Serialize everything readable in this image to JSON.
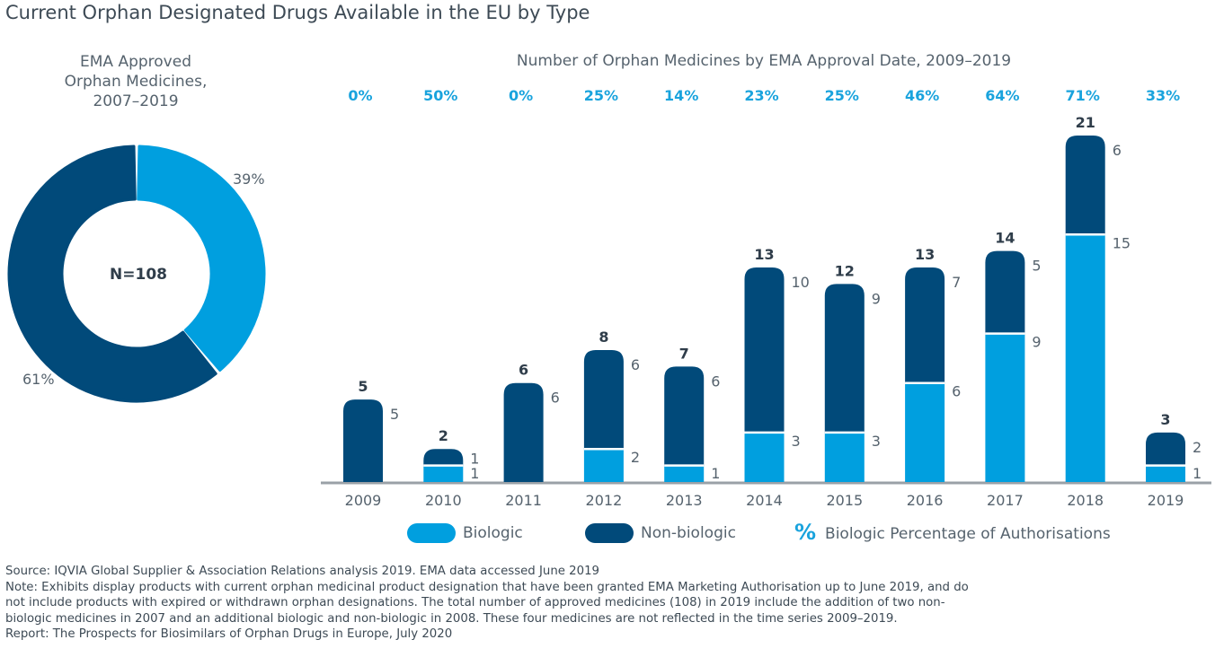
{
  "title": "Current Orphan Designated Drugs Available in the EU by Type",
  "donut": {
    "title_lines": [
      "EMA Approved",
      "Orphan Medicines,",
      "2007–2019"
    ],
    "center_label": "N=108",
    "slices": [
      {
        "name": "Biologic",
        "value": 39,
        "label": "39%"
      },
      {
        "name": "Non-biologic",
        "value": 61,
        "label": "61%"
      }
    ]
  },
  "colors": {
    "biologic": "#009fdf",
    "nonbiologic": "#014a7a",
    "percent": "#19a3dd",
    "axis": "#9aa1a7",
    "text": "#56636e"
  },
  "chart_data": {
    "type": "bar",
    "stacked": true,
    "title": "Number of Orphan Medicines by EMA Approval Date, 2009–2019",
    "categories": [
      "2009",
      "2010",
      "2011",
      "2012",
      "2013",
      "2014",
      "2015",
      "2016",
      "2017",
      "2018",
      "2019"
    ],
    "series": [
      {
        "name": "Biologic",
        "values": [
          0,
          1,
          0,
          2,
          1,
          3,
          3,
          6,
          9,
          15,
          1
        ]
      },
      {
        "name": "Non-biologic",
        "values": [
          5,
          1,
          6,
          6,
          6,
          10,
          9,
          7,
          5,
          6,
          2
        ]
      }
    ],
    "totals": [
      5,
      2,
      6,
      8,
      7,
      13,
      12,
      13,
      14,
      21,
      3
    ],
    "biologic_percent": [
      "0%",
      "50%",
      "0%",
      "25%",
      "14%",
      "23%",
      "25%",
      "46%",
      "64%",
      "71%",
      "33%"
    ],
    "ylim": [
      0,
      21
    ]
  },
  "legend": {
    "biologic": "Biologic",
    "nonbiologic": "Non-biologic",
    "percent_symbol": "%",
    "percent_label": "Biologic Percentage of Authorisations"
  },
  "notes": {
    "source": "Source: IQVIA Global Supplier & Association Relations analysis 2019. EMA data accessed June 2019",
    "note_lines": [
      "Note: Exhibits display products with current orphan medicinal product designation that have been granted EMA Marketing Authorisation up to June 2019, and do",
      "not include products with expired or withdrawn orphan designations. The total number of approved medicines (108) in 2019 include the addition of two non-",
      "biologic medicines in 2007 and an additional biologic and non-biologic in 2008. These four medicines are not reflected in the time series 2009–2019."
    ],
    "report": "Report: The Prospects for Biosimilars of Orphan Drugs in Europe, July 2020"
  }
}
